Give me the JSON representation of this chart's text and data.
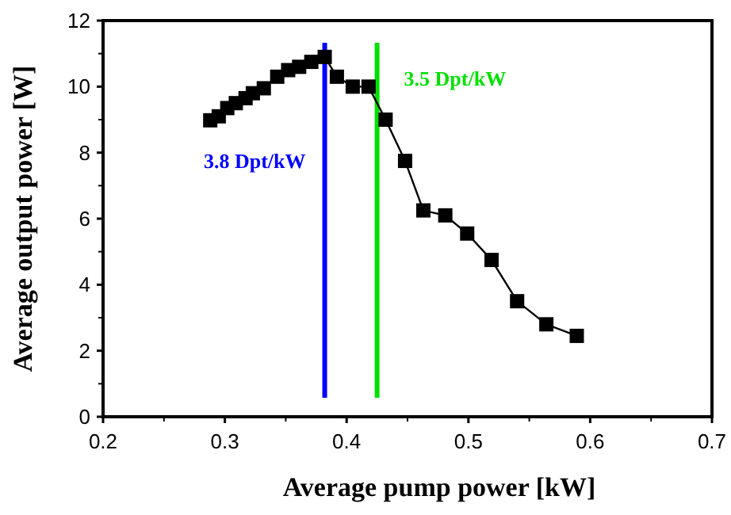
{
  "chart_data": {
    "type": "line",
    "xlabel": "Average pump power [kW]",
    "ylabel": "Average output power [W]",
    "xlim": [
      0.2,
      0.7
    ],
    "xticks": [
      0.2,
      0.3,
      0.4,
      0.5,
      0.6,
      0.7
    ],
    "ylim": [
      0,
      12
    ],
    "yticks": [
      0,
      2,
      4,
      6,
      8,
      10,
      12
    ],
    "grid": false,
    "marker": "square",
    "line_style": "solid",
    "series": [
      {
        "color": "#000000",
        "x": [
          0.288,
          0.295,
          0.302,
          0.309,
          0.317,
          0.323,
          0.332,
          0.343,
          0.352,
          0.361,
          0.371,
          0.382,
          0.392,
          0.405,
          0.418,
          0.432,
          0.448,
          0.463,
          0.481,
          0.499,
          0.519,
          0.54,
          0.564,
          0.589
        ],
        "values": [
          8.98,
          9.1,
          9.35,
          9.5,
          9.65,
          9.8,
          9.95,
          10.3,
          10.5,
          10.6,
          10.75,
          10.9,
          10.3,
          10.0,
          10.0,
          9.0,
          7.75,
          6.25,
          6.1,
          5.55,
          4.75,
          3.5,
          2.8,
          2.45
        ]
      }
    ],
    "ref_lines": [
      {
        "axis": "x",
        "value": 0.382,
        "label": "3.8 Dpt/kW",
        "color": "#0000ff"
      },
      {
        "axis": "x",
        "value": 0.425,
        "label": "3.5 Dpt/kW",
        "color": "#00e000"
      }
    ]
  }
}
